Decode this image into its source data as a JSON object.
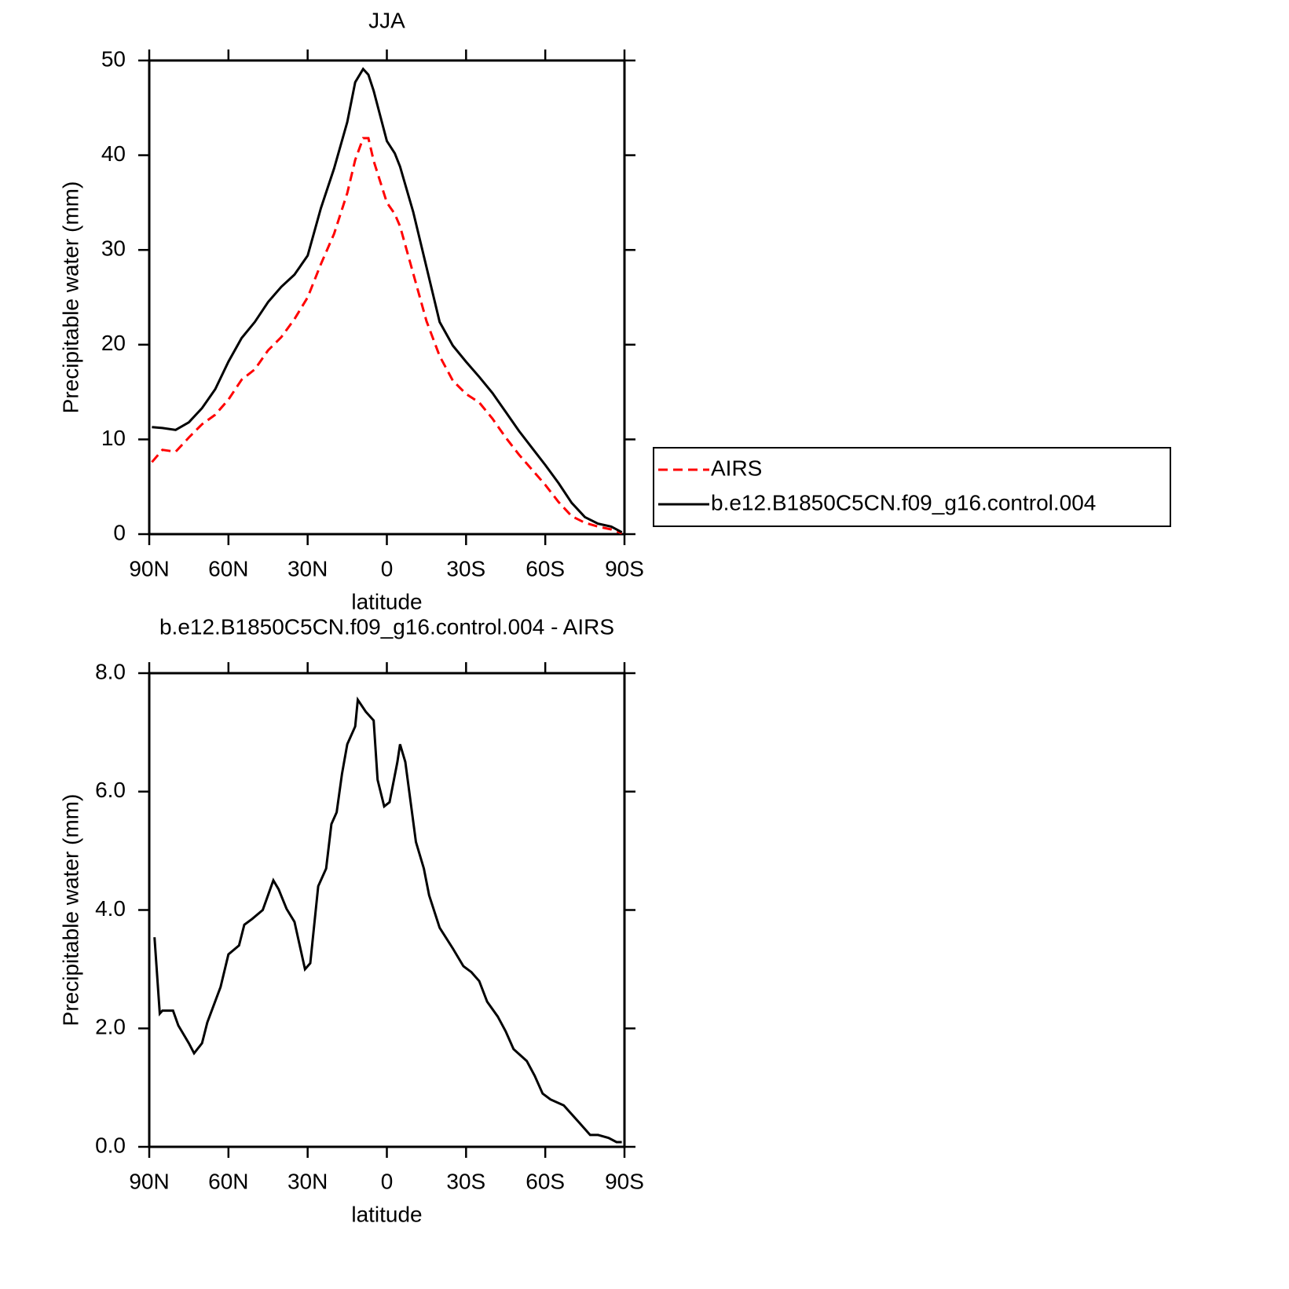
{
  "chart_data": [
    {
      "type": "line",
      "title": "JJA",
      "xlabel": "latitude",
      "ylabel": "Precipitable water (mm)",
      "xlim": [
        90,
        -90
      ],
      "xticks": [
        {
          "value": 90,
          "label": "90N"
        },
        {
          "value": 60,
          "label": "60N"
        },
        {
          "value": 30,
          "label": "30N"
        },
        0,
        {
          "value": -30,
          "label": "30S"
        },
        {
          "value": -60,
          "label": "60S"
        },
        {
          "value": -90,
          "label": "90S"
        }
      ],
      "ylim": [
        0,
        50
      ],
      "yticks": [
        0,
        10,
        20,
        30,
        40,
        50
      ],
      "legend": "right",
      "x": [
        89,
        85,
        80,
        75,
        70,
        65,
        60,
        55,
        50,
        45,
        40,
        35,
        30,
        25,
        20,
        15,
        12,
        9,
        7,
        5,
        0,
        -3,
        -5,
        -10,
        -15,
        -20,
        -25,
        -30,
        -35,
        -40,
        -45,
        -50,
        -55,
        -60,
        -65,
        -70,
        -75,
        -80,
        -85,
        -89
      ],
      "series": [
        {
          "name": "AIRS",
          "color": "#ff0000",
          "dashed": true,
          "values": [
            7.6,
            8.9,
            8.7,
            10.2,
            11.6,
            12.6,
            14.2,
            16.3,
            17.4,
            19.4,
            20.8,
            22.7,
            25.0,
            28.5,
            31.7,
            36.0,
            39.5,
            41.8,
            41.8,
            39.4,
            35.0,
            33.8,
            32.5,
            27.5,
            22.5,
            18.8,
            16.2,
            14.8,
            13.9,
            12.2,
            10.2,
            8.4,
            6.8,
            5.2,
            3.4,
            1.9,
            1.2,
            0.8,
            0.5,
            0.1
          ]
        },
        {
          "name": "b.e12.B1850C5CN.f09_g16.control.004",
          "color": "#000000",
          "dashed": false,
          "values": [
            11.3,
            11.2,
            11.0,
            11.8,
            13.3,
            15.3,
            18.2,
            20.7,
            22.4,
            24.5,
            26.1,
            27.4,
            29.4,
            34.4,
            38.6,
            43.5,
            47.7,
            49.1,
            48.5,
            46.8,
            41.5,
            40.2,
            38.8,
            34.0,
            28.2,
            22.4,
            19.9,
            18.2,
            16.6,
            14.9,
            12.9,
            10.9,
            9.1,
            7.3,
            5.4,
            3.3,
            1.8,
            1.1,
            0.8,
            0.2
          ]
        }
      ]
    },
    {
      "type": "line",
      "title": "b.e12.B1850C5CN.f09_g16.control.004 - AIRS",
      "xlabel": "latitude",
      "ylabel": "Precipitable water (mm)",
      "xlim": [
        90,
        -90
      ],
      "xticks": [
        {
          "value": 90,
          "label": "90N"
        },
        {
          "value": 60,
          "label": "60N"
        },
        {
          "value": 30,
          "label": "30N"
        },
        0,
        {
          "value": -30,
          "label": "30S"
        },
        {
          "value": -60,
          "label": "60S"
        },
        {
          "value": -90,
          "label": "90S"
        }
      ],
      "ylim": [
        0,
        8
      ],
      "yticks": [
        {
          "value": 0,
          "label": "0.0"
        },
        {
          "value": 2,
          "label": "2.0"
        },
        {
          "value": 4,
          "label": "4.0"
        },
        {
          "value": 6,
          "label": "6.0"
        },
        {
          "value": 8,
          "label": "8.0"
        }
      ],
      "color": "#000000",
      "x": [
        88,
        86,
        85,
        81,
        79,
        75,
        73,
        70,
        68,
        63,
        60,
        56,
        54,
        51,
        47,
        43,
        41,
        38,
        35,
        31,
        29,
        26,
        23,
        21,
        19,
        17,
        15,
        12,
        11,
        8,
        5,
        3.5,
        1,
        -1,
        -4,
        -5,
        -7,
        -11,
        -14,
        -16,
        -20,
        -25,
        -29,
        -32,
        -35,
        -38,
        -42,
        -45,
        -48,
        -53,
        -56,
        -59,
        -62,
        -67,
        -73,
        -77,
        -80,
        -84,
        -87,
        -89
      ],
      "values": [
        3.54,
        2.25,
        2.3,
        2.3,
        2.05,
        1.75,
        1.58,
        1.75,
        2.1,
        2.7,
        3.25,
        3.4,
        3.75,
        3.85,
        4.0,
        4.5,
        4.35,
        4.02,
        3.8,
        3.0,
        3.1,
        4.4,
        4.7,
        5.45,
        5.65,
        6.3,
        6.8,
        7.1,
        7.55,
        7.35,
        7.2,
        6.2,
        5.75,
        5.82,
        6.5,
        6.8,
        6.5,
        5.15,
        4.7,
        4.25,
        3.7,
        3.35,
        3.05,
        2.95,
        2.8,
        2.45,
        2.2,
        1.95,
        1.65,
        1.45,
        1.2,
        0.9,
        0.8,
        0.7,
        0.4,
        0.2,
        0.2,
        0.15,
        0.08,
        0.08
      ]
    }
  ]
}
